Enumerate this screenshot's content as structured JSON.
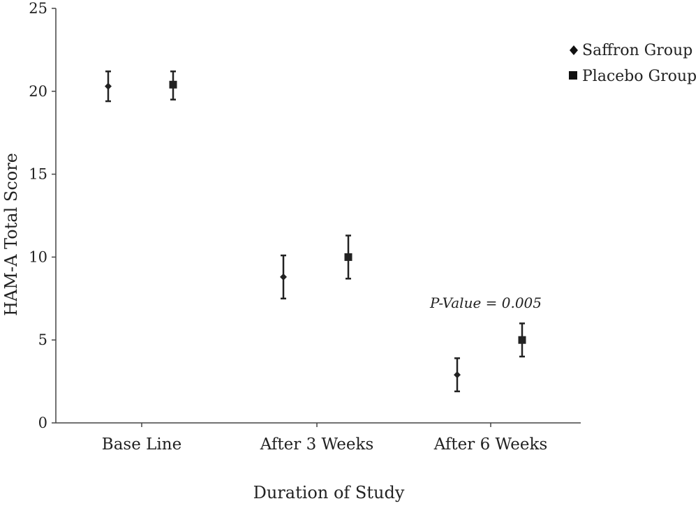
{
  "chart_data": {
    "type": "scatter",
    "xlabel": "Duration of Study",
    "ylabel": "HAM-A Total Score",
    "categories": [
      "Base Line",
      "After 3 Weeks",
      "After 6 Weeks"
    ],
    "ylim": [
      0,
      25
    ],
    "yticks": [
      "0",
      "5",
      "10",
      "15",
      "20",
      "25"
    ],
    "grid": false,
    "legend_position": "top-right",
    "series": [
      {
        "name": "Saffron Group",
        "marker": "diamond",
        "values": [
          20.3,
          8.8,
          2.9
        ],
        "err_low": [
          19.4,
          7.5,
          1.9
        ],
        "err_high": [
          21.2,
          10.1,
          3.9
        ]
      },
      {
        "name": "Placebo Group",
        "marker": "square",
        "values": [
          20.4,
          10.0,
          5.0
        ],
        "err_low": [
          19.5,
          8.7,
          4.0
        ],
        "err_high": [
          21.2,
          11.3,
          6.0
        ]
      }
    ],
    "annotation": "P-Value = 0.005",
    "color": "#222222"
  }
}
